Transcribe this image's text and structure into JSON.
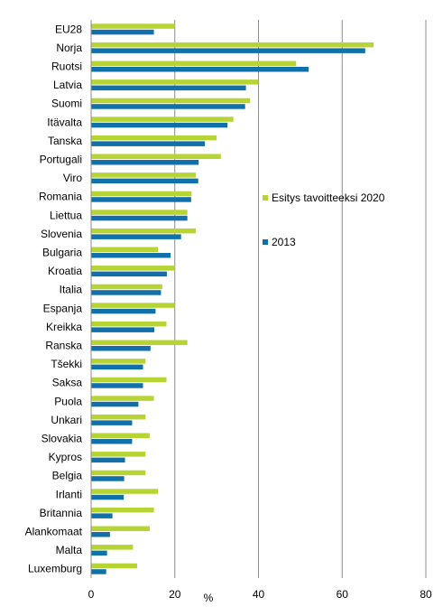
{
  "chart_data": {
    "type": "bar",
    "orientation": "horizontal",
    "categories": [
      "EU28",
      "Norja",
      "Ruotsi",
      "Latvia",
      "Suomi",
      "Itävalta",
      "Tanska",
      "Portugali",
      "Viro",
      "Romania",
      "Liettua",
      "Slovenia",
      "Bulgaria",
      "Kroatia",
      "Italia",
      "Espanja",
      "Kreikka",
      "Ranska",
      "Tšekki",
      "Saksa",
      "Puola",
      "Unkari",
      "Slovakia",
      "Kypros",
      "Belgia",
      "Irlanti",
      "Britannia",
      "Alankomaat",
      "Malta",
      "Luxemburg"
    ],
    "series": [
      {
        "name": "Esitys tavoitteeksi 2020",
        "color": "#b6d433",
        "values": [
          20,
          67.5,
          49,
          40,
          38,
          34,
          30,
          31,
          25,
          24,
          23,
          25,
          16,
          20,
          17,
          20,
          18,
          23,
          13,
          18,
          15,
          13,
          14,
          13,
          13,
          16,
          15,
          14,
          10,
          11
        ]
      },
      {
        "name": "2013",
        "color": "#1170aa",
        "values": [
          15,
          65.5,
          52,
          37,
          36.8,
          32.6,
          27.2,
          25.7,
          25.6,
          23.9,
          23,
          21.5,
          19,
          18.1,
          16.7,
          15.4,
          15.1,
          14.2,
          12.4,
          12.4,
          11.3,
          9.8,
          9.8,
          8.1,
          7.9,
          7.8,
          5.1,
          4.5,
          3.8,
          3.6
        ]
      }
    ],
    "xlabel": "%",
    "xlim": [
      0,
      80
    ],
    "xticks": [
      0,
      20,
      40,
      60,
      80
    ],
    "grid": true,
    "legend": "right"
  }
}
